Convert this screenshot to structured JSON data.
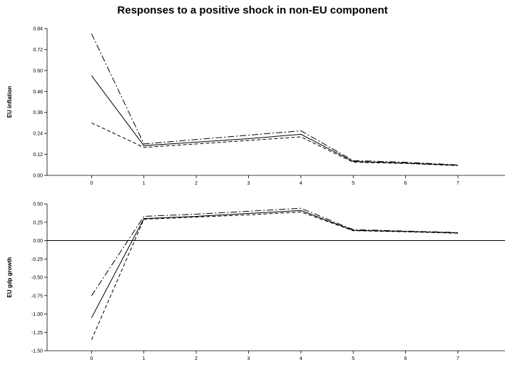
{
  "title": "Responses to a positive shock in non-EU component",
  "chart_data": [
    {
      "type": "line",
      "ylabel": "EU inflation",
      "x": [
        0,
        1,
        2,
        3,
        4,
        5,
        6,
        7
      ],
      "xlim": [
        -0.85,
        7.9
      ],
      "ylim": [
        0,
        0.84
      ],
      "yticks": [
        "0.00",
        "0.12",
        "0.24",
        "0.36",
        "0.48",
        "0.60",
        "0.72",
        "0.84"
      ],
      "xticks": [
        "0",
        "1",
        "2",
        "3",
        "4",
        "5",
        "6",
        "7"
      ],
      "zero_line": false,
      "series": [
        {
          "style": "dashdot",
          "values": [
            0.81,
            0.18,
            0.205,
            0.23,
            0.255,
            0.085,
            0.075,
            0.06
          ]
        },
        {
          "style": "solid",
          "values": [
            0.57,
            0.17,
            0.19,
            0.21,
            0.235,
            0.08,
            0.07,
            0.058
          ]
        },
        {
          "style": "dashed",
          "values": [
            0.3,
            0.16,
            0.18,
            0.2,
            0.22,
            0.075,
            0.068,
            0.056
          ]
        }
      ]
    },
    {
      "type": "line",
      "ylabel": "EU gdp growth",
      "x": [
        0,
        1,
        2,
        3,
        4,
        5,
        6,
        7
      ],
      "xlim": [
        -0.85,
        7.9
      ],
      "ylim": [
        -1.5,
        0.5
      ],
      "yticks": [
        "-1.50",
        "-1.25",
        "-1.00",
        "-0.75",
        "-0.50",
        "-0.25",
        "0.00",
        "0.25",
        "0.50"
      ],
      "xticks": [
        "0",
        "1",
        "2",
        "3",
        "4",
        "5",
        "6",
        "7"
      ],
      "zero_line": true,
      "series": [
        {
          "style": "dashdot",
          "values": [
            -0.75,
            0.33,
            0.36,
            0.4,
            0.44,
            0.15,
            0.13,
            0.11
          ]
        },
        {
          "style": "solid",
          "values": [
            -1.05,
            0.3,
            0.33,
            0.37,
            0.41,
            0.14,
            0.125,
            0.105
          ]
        },
        {
          "style": "dashed",
          "values": [
            -1.35,
            0.29,
            0.32,
            0.35,
            0.39,
            0.135,
            0.12,
            0.1
          ]
        }
      ]
    }
  ]
}
